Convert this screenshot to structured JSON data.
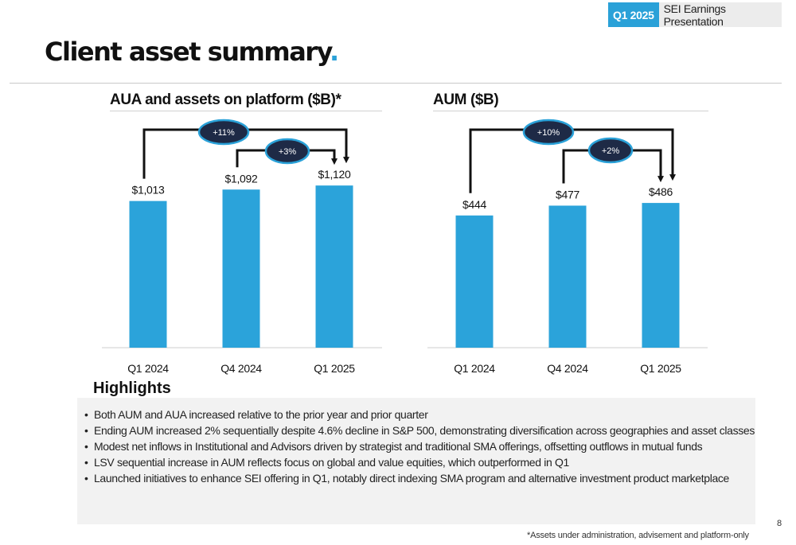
{
  "header": {
    "badge_period": "Q1 2025",
    "badge_title": "SEI Earnings Presentation"
  },
  "page": {
    "title": "Client asset summary",
    "title_dot": "."
  },
  "chart_data": [
    {
      "type": "bar",
      "title": "AUA and assets on platform ($B)*",
      "categories": [
        "Q1 2024",
        "Q4 2024",
        "Q1 2025"
      ],
      "values": [
        1013,
        1092,
        1120
      ],
      "data_labels": [
        "$1,013",
        "$1,092",
        "$1,120"
      ],
      "callouts": [
        {
          "label": "+11%",
          "from": "Q1 2024",
          "to": "Q1 2025"
        },
        {
          "label": "+3%",
          "from": "Q4 2024",
          "to": "Q1 2025"
        }
      ],
      "grid": false
    },
    {
      "type": "bar",
      "title": "AUM ($B)",
      "categories": [
        "Q1 2024",
        "Q4 2024",
        "Q1 2025"
      ],
      "values": [
        444,
        477,
        486
      ],
      "data_labels": [
        "$444",
        "$477",
        "$486"
      ],
      "callouts": [
        {
          "label": "+10%",
          "from": "Q1 2024",
          "to": "Q1 2025"
        },
        {
          "label": "+2%",
          "from": "Q4 2024",
          "to": "Q1 2025"
        }
      ],
      "grid": false
    }
  ],
  "colors": {
    "accent": "#2aa1d8",
    "bar": "#2ba3da",
    "callout_fill": "#1e2a46",
    "callout_border": "#2aa1d8"
  },
  "highlights": {
    "title": "Highlights",
    "items": [
      "Both AUM and AUA increased relative to the prior year and prior quarter",
      "Ending AUM increased 2% sequentially despite 4.6% decline in S&P 500, demonstrating diversification across geographies and asset classes",
      "Modest net inflows in Institutional and Advisors driven by strategist and traditional SMA offerings, offsetting outflows in mutual funds",
      "LSV sequential increase in AUM reflects focus on global and value equities, which outperformed in Q1",
      "Launched initiatives to enhance SEI offering in Q1, notably direct indexing SMA program and alternative investment product marketplace"
    ]
  },
  "footnote": "*Assets under administration, advisement and platform-only",
  "page_number": "8"
}
